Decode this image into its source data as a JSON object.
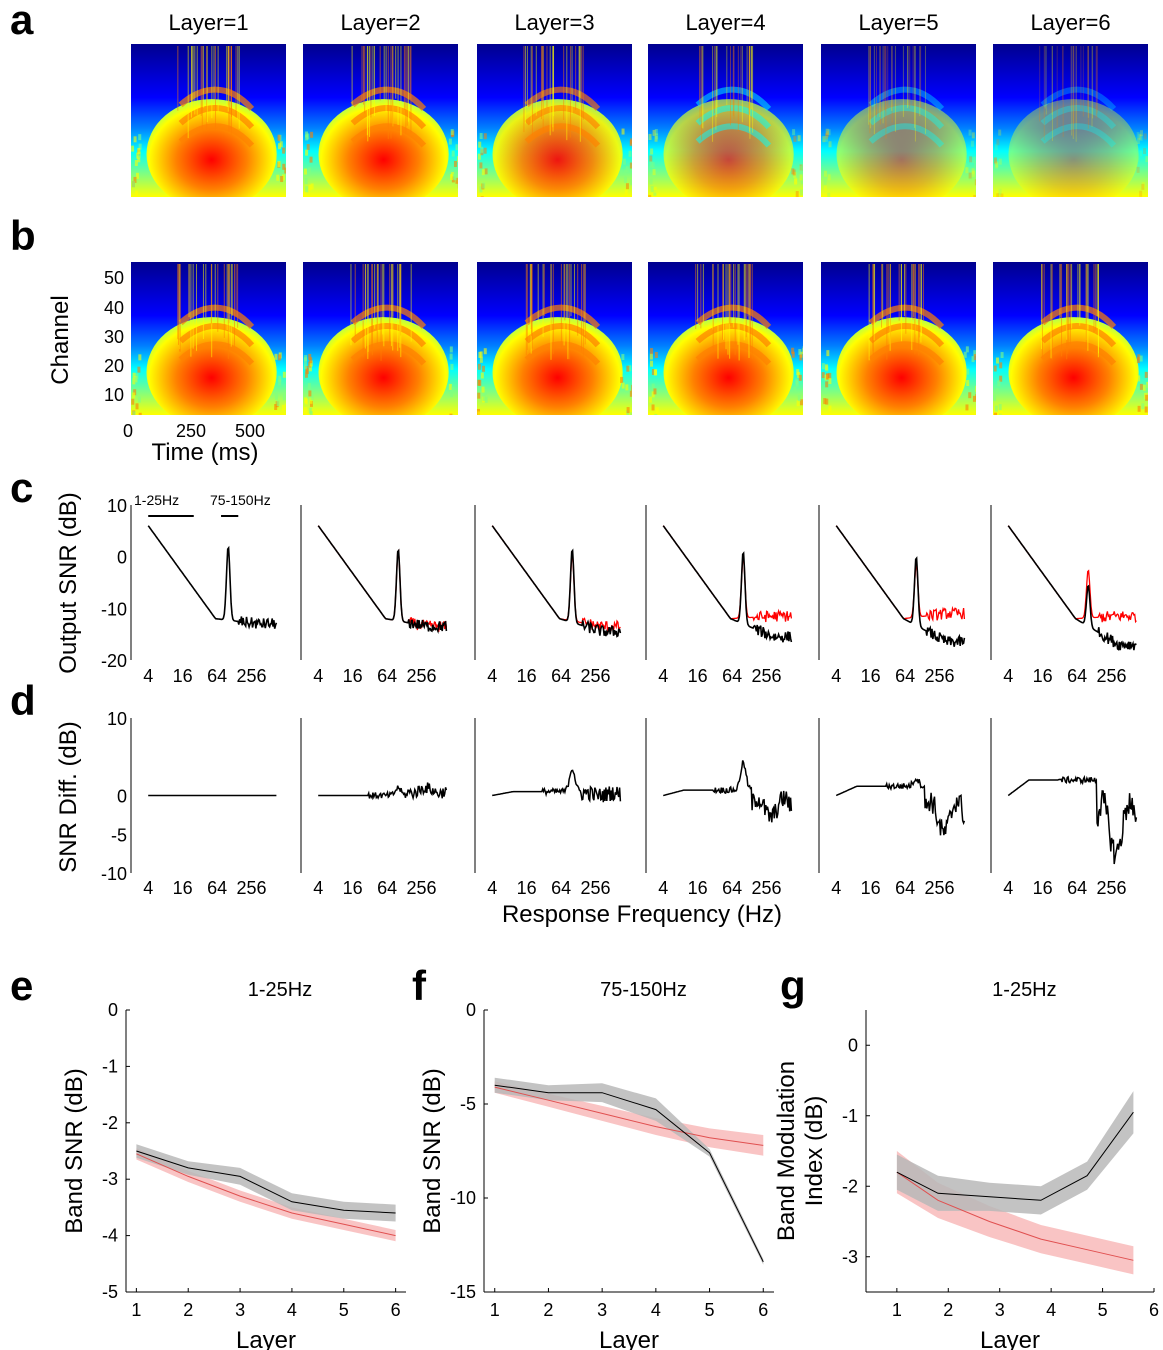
{
  "panel_labels": [
    "a",
    "b",
    "c",
    "d",
    "e",
    "f",
    "g"
  ],
  "row_a": {
    "titles": [
      "Layer=1",
      "Layer=2",
      "Layer=3",
      "Layer=4",
      "Layer=5",
      "Layer=6"
    ],
    "layer_intensity": [
      1.0,
      1.0,
      0.92,
      0.72,
      0.55,
      0.42
    ]
  },
  "row_b": {
    "ylabel": "Channel",
    "yticks": [
      "10",
      "20",
      "30",
      "40",
      "50"
    ],
    "xticks": [
      "0",
      "250",
      "500"
    ],
    "xlabel": "Time (ms)"
  },
  "colormap": [
    "#00008f",
    "#0000ff",
    "#0080ff",
    "#00ffff",
    "#80ff80",
    "#ffff00",
    "#ff8000",
    "#ff0000"
  ],
  "chart_data": [
    {
      "id": "c",
      "type": "line",
      "ylabel": "Output SNR (dB)",
      "ylim": [
        -20,
        10
      ],
      "yticks": [
        "10",
        "0",
        "-10",
        "-20"
      ],
      "xscale": "log2",
      "xticks": [
        "4",
        "16",
        "64",
        "256"
      ],
      "band_labels": [
        "1-25Hz",
        "75-150Hz"
      ],
      "series": [
        {
          "color": "#ff0000",
          "layers_visible": [
            2,
            3,
            4,
            5,
            6
          ]
        },
        {
          "color": "#000000",
          "layers_visible": [
            1,
            2,
            3,
            4,
            5,
            6
          ]
        }
      ],
      "peak_hz": 100,
      "black_tail_db": [
        -13,
        -13.5,
        -14.5,
        -15.5,
        -16.5,
        -17
      ],
      "red_tail_db": [
        -13,
        -13.5,
        -13.5,
        -11.5,
        -11,
        -11.5
      ],
      "black_peak_db": [
        2,
        1.5,
        1.5,
        1,
        0,
        -5.5
      ],
      "red_peak_db": [
        2,
        1.5,
        0.5,
        0,
        -1.5,
        -2.5
      ]
    },
    {
      "id": "d",
      "type": "line",
      "ylabel": "SNR Diff. (dB)",
      "xlabel": "Response Frequency (Hz)",
      "ylim": [
        -10,
        10
      ],
      "yticks": [
        "10",
        "0",
        "-5",
        "-10"
      ],
      "xscale": "log2",
      "xticks": [
        "4",
        "16",
        "64",
        "256"
      ],
      "low_level_db": [
        0,
        0,
        0.5,
        0.7,
        1.2,
        2
      ],
      "bump_db": [
        0,
        1,
        3,
        3.5,
        1,
        0
      ],
      "trough_db": [
        0,
        1,
        -0.5,
        -3.5,
        -6,
        -9.5
      ]
    },
    {
      "id": "e",
      "type": "line",
      "title": "1-25Hz",
      "xlabel": "Layer",
      "ylabel": "Band SNR (dB)",
      "ylim": [
        -5,
        0
      ],
      "yticks": [
        "0",
        "-1",
        "-2",
        "-3",
        "-4",
        "-5"
      ],
      "x": [
        1,
        2,
        3,
        4,
        5,
        6
      ],
      "series": [
        {
          "color": "#000000",
          "band_color": "#b8b8b8",
          "values": [
            -2.5,
            -2.8,
            -2.95,
            -3.4,
            -3.55,
            -3.6
          ],
          "halfwidth": [
            0.12,
            0.12,
            0.15,
            0.15,
            0.15,
            0.15
          ]
        },
        {
          "color": "#e05050",
          "band_color": "#f7b5b5",
          "values": [
            -2.55,
            -2.95,
            -3.3,
            -3.6,
            -3.8,
            -4.0
          ],
          "halfwidth": [
            0.1,
            0.1,
            0.1,
            0.1,
            0.1,
            0.1
          ]
        }
      ]
    },
    {
      "id": "f",
      "type": "line",
      "title": "75-150Hz",
      "xlabel": "Layer",
      "ylabel": "Band SNR (dB)",
      "ylim": [
        -15,
        0
      ],
      "yticks": [
        "0",
        "-5",
        "-10",
        "-15"
      ],
      "x": [
        1,
        2,
        3,
        4,
        5,
        6
      ],
      "series": [
        {
          "color": "#000000",
          "band_color": "#b8b8b8",
          "values": [
            -4.0,
            -4.4,
            -4.4,
            -5.3,
            -7.6,
            -13.4
          ],
          "halfwidth": [
            0.4,
            0.4,
            0.5,
            0.6,
            0.2,
            0.15
          ]
        },
        {
          "color": "#e05050",
          "band_color": "#f7b5b5",
          "values": [
            -4.1,
            -4.8,
            -5.5,
            -6.2,
            -6.8,
            -7.2
          ],
          "halfwidth": [
            0.3,
            0.35,
            0.4,
            0.45,
            0.5,
            0.55
          ]
        }
      ]
    },
    {
      "id": "g",
      "type": "line",
      "title": "1-25Hz",
      "xlabel": "Layer",
      "ylabel": [
        "Band Modulation",
        "Index (dB)"
      ],
      "ylim": [
        -3.5,
        0.5
      ],
      "yticks": [
        "0",
        "-1",
        "-2",
        "-3"
      ],
      "xlim": [
        0.4,
        6
      ],
      "xticks": [
        "1",
        "2",
        "3",
        "4",
        "5",
        "6"
      ],
      "x": [
        1,
        1.8,
        2.8,
        3.8,
        4.7,
        5.6
      ],
      "series": [
        {
          "color": "#000000",
          "band_color": "#b8b8b8",
          "values": [
            -1.8,
            -2.1,
            -2.15,
            -2.2,
            -1.85,
            -0.95
          ],
          "halfwidth": [
            0.25,
            0.25,
            0.2,
            0.2,
            0.2,
            0.3
          ]
        },
        {
          "color": "#e05050",
          "band_color": "#f7b5b5",
          "values": [
            -1.8,
            -2.2,
            -2.5,
            -2.75,
            -2.9,
            -3.05
          ],
          "halfwidth": [
            0.3,
            0.25,
            0.22,
            0.2,
            0.2,
            0.2
          ]
        }
      ]
    }
  ]
}
